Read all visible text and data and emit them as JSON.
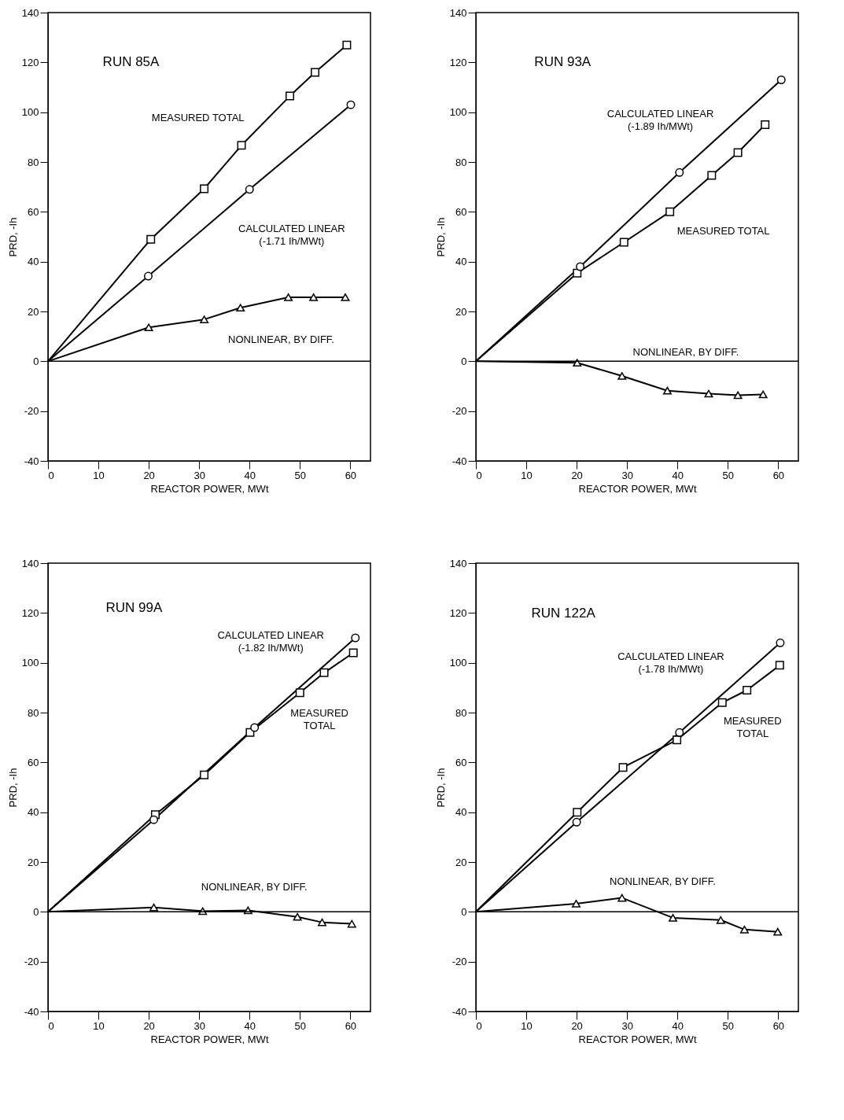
{
  "chart_data": [
    {
      "type": "line",
      "title": "RUN 85A",
      "xlabel": "REACTOR POWER, MWt",
      "ylabel": "PRD, -Ih",
      "xlim": [
        0,
        64
      ],
      "ylim": [
        -40,
        140
      ],
      "xticks": [
        0,
        10,
        20,
        30,
        40,
        50,
        60
      ],
      "yticks": [
        -40,
        -20,
        0,
        20,
        40,
        60,
        80,
        100,
        120,
        140
      ],
      "grid": false,
      "ref_lines": [
        {
          "axis": "y",
          "value": 0
        }
      ],
      "series": [
        {
          "name": "MEASURED TOTAL",
          "color": "#000000",
          "marker": "square",
          "x": [
            0,
            20.4,
            31,
            38.4,
            48,
            53,
            59.3
          ],
          "values": [
            0,
            49,
            69.3,
            86.7,
            106.5,
            116,
            127
          ]
        },
        {
          "name": "CALCULATED LINEAR\n(-1.71 Ih/MWt)",
          "color": "#000000",
          "marker": "circle",
          "x": [
            0,
            19.9,
            40,
            60.1
          ],
          "values": [
            0,
            34.2,
            69,
            103
          ]
        },
        {
          "name": "NONLINEAR, BY DIFF.",
          "color": "#000000",
          "marker": "triangle",
          "x": [
            0,
            20,
            31,
            38.2,
            47.7,
            52.7,
            59
          ],
          "values": [
            0,
            13.6,
            16.8,
            21.5,
            25.7,
            25.7,
            25.7
          ]
        }
      ]
    },
    {
      "type": "line",
      "title": "RUN 93A",
      "xlabel": "REACTOR POWER, MWt",
      "ylabel": "PRD, -Ih",
      "xlim": [
        0,
        64
      ],
      "ylim": [
        -40,
        140
      ],
      "xticks": [
        0,
        10,
        20,
        30,
        40,
        50,
        60
      ],
      "yticks": [
        -40,
        -20,
        0,
        20,
        40,
        60,
        80,
        100,
        120,
        140
      ],
      "grid": false,
      "ref_lines": [
        {
          "axis": "y",
          "value": 0
        }
      ],
      "series": [
        {
          "name": "CALCULATED LINEAR\n(-1.89 Ih/MWt)",
          "color": "#000000",
          "marker": "circle",
          "x": [
            0,
            20.7,
            40.4,
            60.6
          ],
          "values": [
            0,
            38,
            75.8,
            113
          ]
        },
        {
          "name": "MEASURED TOTAL",
          "color": "#000000",
          "marker": "square",
          "x": [
            0,
            20.1,
            29.4,
            38.5,
            46.8,
            52,
            57.4
          ],
          "values": [
            0,
            35.4,
            47.8,
            60,
            74.6,
            83.8,
            95
          ]
        },
        {
          "name": "NONLINEAR, BY DIFF.",
          "color": "#000000",
          "marker": "triangle",
          "x": [
            0,
            20.1,
            29,
            38,
            46.2,
            52,
            57
          ],
          "values": [
            0,
            -0.6,
            -5.9,
            -11.8,
            -13,
            -13.6,
            -13.3
          ]
        }
      ]
    },
    {
      "type": "line",
      "title": "RUN 99A",
      "xlabel": "REACTOR POWER, MWt",
      "ylabel": "PRD, -Ih",
      "xlim": [
        0,
        64
      ],
      "ylim": [
        -40,
        140
      ],
      "xticks": [
        0,
        10,
        20,
        30,
        40,
        50,
        60
      ],
      "yticks": [
        -40,
        -20,
        0,
        20,
        40,
        60,
        80,
        100,
        120,
        140
      ],
      "grid": false,
      "ref_lines": [
        {
          "axis": "y",
          "value": 0
        }
      ],
      "series": [
        {
          "name": "CALCULATED LINEAR\n(-1.82 Ih/MWt)",
          "color": "#000000",
          "marker": "circle",
          "x": [
            0,
            21,
            41,
            61
          ],
          "values": [
            0,
            37,
            74,
            110
          ]
        },
        {
          "name": "MEASURED\nTOTAL",
          "color": "#000000",
          "marker": "square",
          "x": [
            0,
            21.3,
            31,
            40.1,
            50,
            54.8,
            60.6
          ],
          "values": [
            0,
            39,
            55,
            72,
            88,
            96,
            104
          ]
        },
        {
          "name": "NONLINEAR, BY DIFF.",
          "color": "#000000",
          "marker": "triangle",
          "x": [
            0,
            21,
            30.7,
            39.7,
            49.5,
            54.4,
            60.3
          ],
          "values": [
            0,
            1.8,
            0.3,
            0.6,
            -2,
            -4.2,
            -4.8
          ]
        }
      ]
    },
    {
      "type": "line",
      "title": "RUN 122A",
      "xlabel": "REACTOR POWER, MWt",
      "ylabel": "PRD, -Ih",
      "xlim": [
        0,
        64
      ],
      "ylim": [
        -40,
        140
      ],
      "xticks": [
        0,
        10,
        20,
        30,
        40,
        50,
        60
      ],
      "yticks": [
        -40,
        -20,
        0,
        20,
        40,
        60,
        80,
        100,
        120,
        140
      ],
      "grid": false,
      "ref_lines": [
        {
          "axis": "y",
          "value": 0
        }
      ],
      "series": [
        {
          "name": "CALCULATED LINEAR\n(-1.78 Ih/MWt)",
          "color": "#000000",
          "marker": "circle",
          "x": [
            0,
            20,
            40.4,
            60.4
          ],
          "values": [
            0,
            36,
            72,
            108
          ]
        },
        {
          "name": "MEASURED\nTOTAL",
          "color": "#000000",
          "marker": "square",
          "x": [
            0,
            20.1,
            29.2,
            39.9,
            48.9,
            53.8,
            60.3
          ],
          "values": [
            0,
            40,
            58,
            69,
            84,
            89,
            99
          ]
        },
        {
          "name": "NONLINEAR, BY DIFF.",
          "color": "#000000",
          "marker": "triangle",
          "x": [
            0,
            19.9,
            29,
            39.1,
            48.6,
            53.3,
            59.9
          ],
          "values": [
            0,
            3.3,
            5.6,
            -2.4,
            -3.3,
            -7.1,
            -8
          ]
        }
      ]
    }
  ]
}
